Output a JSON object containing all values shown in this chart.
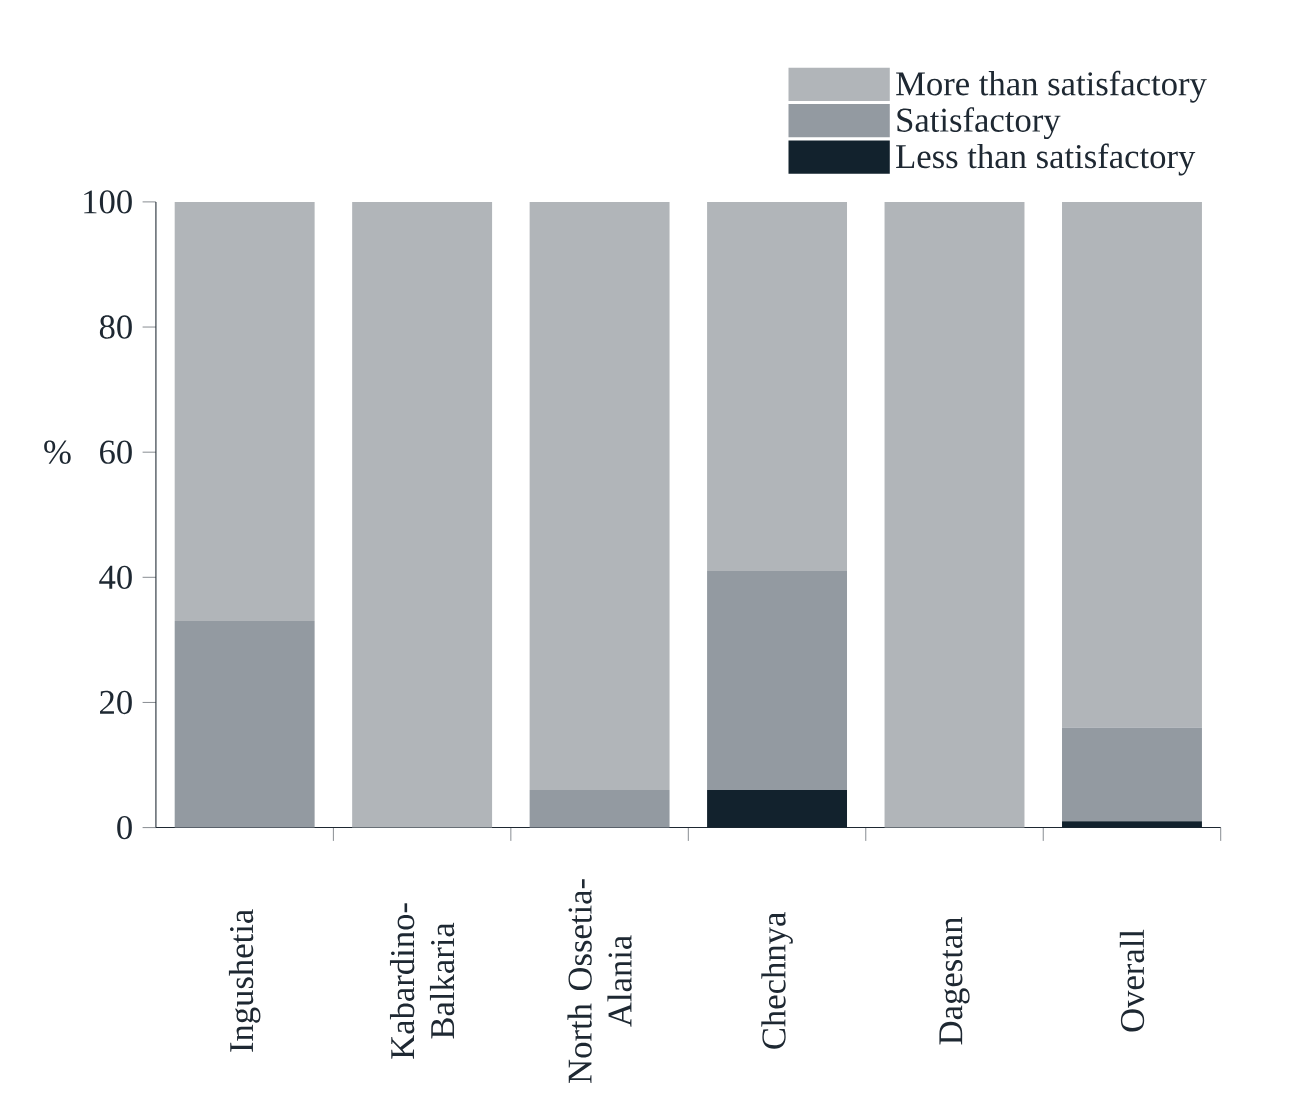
{
  "chart_data": {
    "type": "bar",
    "stacked": true,
    "ylabel": "%",
    "categories": [
      "Ingushetia",
      "Kabardino-Balkaria",
      "North Ossetia-Alania",
      "Chechnya",
      "Dagestan",
      "Overall"
    ],
    "series": [
      {
        "name": "Less than satisfactory",
        "color": "#12222d",
        "values": [
          0,
          0,
          0,
          6,
          0,
          1
        ]
      },
      {
        "name": "Satisfactory",
        "color": "#939aa1",
        "values": [
          33,
          0,
          6,
          35,
          0,
          15
        ]
      },
      {
        "name": "More than satisfactory",
        "color": "#b1b5b9",
        "values": [
          67,
          100,
          94,
          59,
          100,
          84
        ]
      }
    ],
    "ylim": [
      0,
      100
    ],
    "yticks": [
      0,
      20,
      40,
      60,
      80,
      100
    ],
    "grid": false,
    "legend": "top right"
  }
}
